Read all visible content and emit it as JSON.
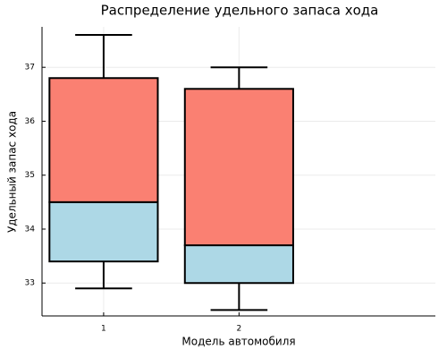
{
  "chart_data": {
    "type": "box",
    "title": "Распределение удельного запаса хода",
    "x_label": "Модель автомобиля",
    "y_label": "Удельный запас хода",
    "categories": [
      "1",
      "2"
    ],
    "min": [
      32.9,
      32.5
    ],
    "q1": [
      33.4,
      33.0
    ],
    "median": [
      34.5,
      33.7
    ],
    "q3": [
      36.8,
      36.6
    ],
    "max": [
      37.6,
      37.0
    ],
    "lower_color": "#add8e6",
    "upper_color": "#fa8072",
    "ylim": [
      32.39,
      37.75
    ],
    "yticks": [
      33,
      34,
      35,
      36,
      37
    ],
    "grid": true
  }
}
